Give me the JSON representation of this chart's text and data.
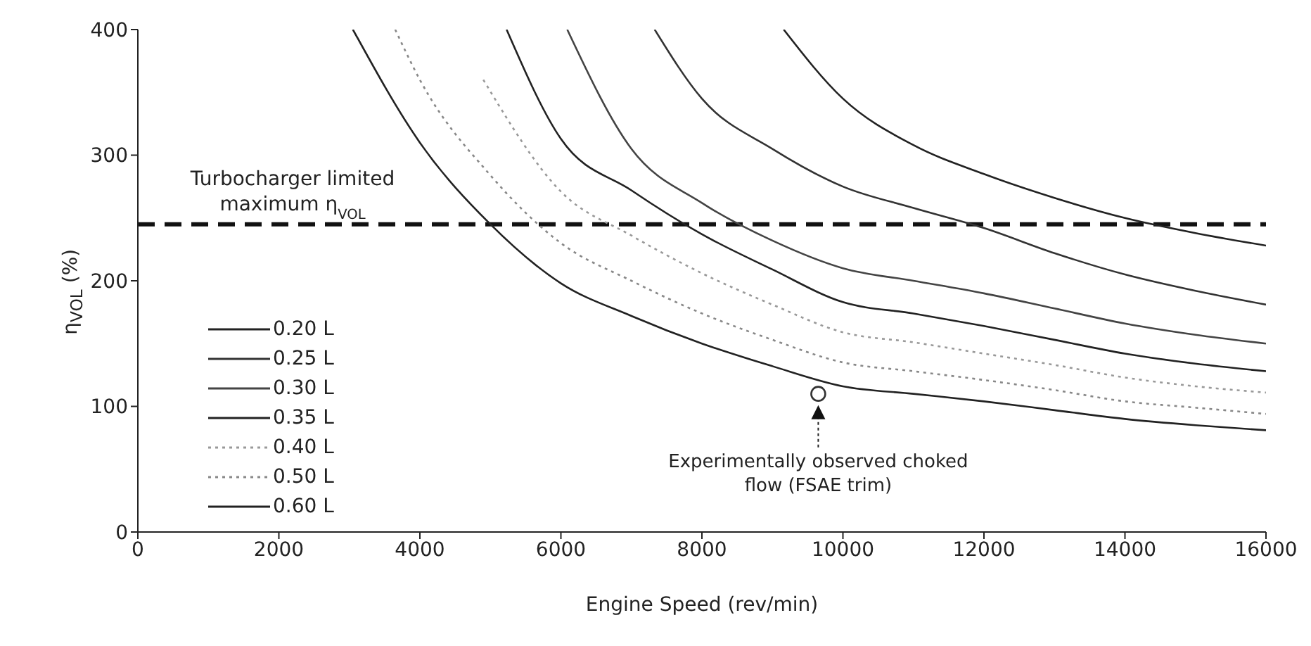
{
  "chart_data": {
    "type": "line",
    "xlabel": "Engine Speed  (rev/min)",
    "ylabel": "η$_{VOL}$ (%)",
    "xlim": [
      0,
      16000
    ],
    "xticks": [
      0,
      2000,
      4000,
      6000,
      8000,
      10000,
      12000,
      14000,
      16000
    ],
    "ylim": [
      0,
      400
    ],
    "yticks": [
      0,
      100,
      200,
      300,
      400
    ],
    "legend": "left",
    "marker": "none",
    "series": [
      {
        "name": "0.20 L",
        "color": "#222222",
        "line_style": "solid",
        "x": [
          9160,
          10000,
          11000,
          12000,
          13000,
          14000,
          15000,
          16000
        ],
        "values": [
          400,
          345,
          308,
          285,
          266,
          250,
          238,
          228
        ]
      },
      {
        "name": "0.25 L",
        "color": "#333333",
        "line_style": "solid",
        "x": [
          7330,
          8000,
          9000,
          10000,
          11000,
          12000,
          13000,
          14000,
          15000,
          16000
        ],
        "values": [
          400,
          345,
          305,
          275,
          258,
          242,
          222,
          205,
          192,
          181
        ]
      },
      {
        "name": "0.30 L",
        "color": "#444444",
        "line_style": "solid",
        "x": [
          6090,
          7000,
          8000,
          9000,
          10000,
          11000,
          12000,
          13000,
          14000,
          15000,
          16000
        ],
        "values": [
          400,
          305,
          262,
          232,
          210,
          200,
          190,
          178,
          166,
          157,
          150
        ]
      },
      {
        "name": "0.35 L",
        "color": "#222222",
        "line_style": "solid",
        "x": [
          5230,
          6000,
          7000,
          8000,
          9000,
          10000,
          11000,
          12000,
          13000,
          14000,
          15000,
          16000
        ],
        "values": [
          400,
          313,
          272,
          237,
          209,
          183,
          174,
          164,
          153,
          142,
          134,
          128
        ]
      },
      {
        "name": "0.40 L",
        "color": "#999999",
        "line_style": "dotted",
        "x": [
          4900,
          6000,
          7000,
          8000,
          9000,
          10000,
          11000,
          12000,
          13000,
          14000,
          15000,
          16000
        ],
        "values": [
          360,
          271,
          236,
          206,
          181,
          159,
          151,
          142,
          133,
          123,
          116,
          111
        ]
      },
      {
        "name": "0.50 L",
        "color": "#888888",
        "line_style": "dotted",
        "x": [
          3650,
          4000,
          5000,
          6000,
          7000,
          8000,
          9000,
          10000,
          11000,
          12000,
          13000,
          14000,
          15000,
          16000
        ],
        "values": [
          400,
          360,
          284,
          230,
          200,
          174,
          153,
          135,
          128,
          121,
          113,
          104,
          99,
          94
        ]
      },
      {
        "name": "0.60 L",
        "color": "#222222",
        "line_style": "solid",
        "x": [
          3050,
          4000,
          5000,
          6000,
          7000,
          8000,
          9000,
          10000,
          11000,
          12000,
          13000,
          14000,
          15000,
          16000
        ],
        "values": [
          400,
          310,
          245,
          198,
          172,
          150,
          132,
          116,
          110,
          104,
          97,
          90,
          85,
          81
        ]
      },
      {
        "type": "scatter",
        "marker": "circle",
        "color": "#333333",
        "x": [
          9650
        ],
        "values": [
          110
        ]
      }
    ],
    "ref_lines": [
      {
        "axis": "y",
        "value": 245,
        "label": "Turbocharger limited maximum η$_{VOL}$",
        "color": "#111111",
        "line_style": "dashed"
      }
    ],
    "annotations": [
      "Experimentally observed choked flow (FSAE trim)"
    ]
  }
}
